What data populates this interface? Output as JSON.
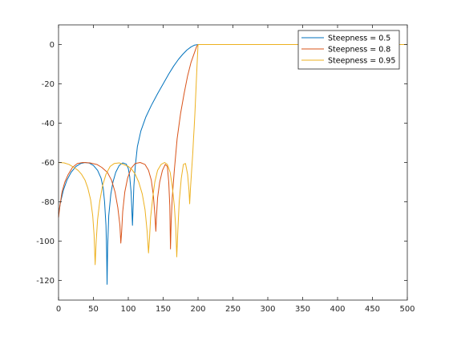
{
  "chart_data": {
    "type": "line",
    "xlim": [
      0,
      500
    ],
    "ylim": [
      -130,
      10
    ],
    "x_ticks": [
      0,
      50,
      100,
      150,
      200,
      250,
      300,
      350,
      400,
      450,
      500
    ],
    "y_ticks": [
      0,
      -20,
      -40,
      -60,
      -80,
      -100,
      -120
    ],
    "grid": false,
    "legend_position": "top-right",
    "series": [
      {
        "name": "Steepness = 0.5",
        "color": "#0072BD",
        "points": [
          [
            0,
            -86
          ],
          [
            3,
            -80
          ],
          [
            7,
            -74
          ],
          [
            12,
            -69
          ],
          [
            18,
            -65
          ],
          [
            25,
            -62
          ],
          [
            32,
            -60.5
          ],
          [
            38,
            -60
          ],
          [
            44,
            -60.3
          ],
          [
            50,
            -61.5
          ],
          [
            56,
            -64
          ],
          [
            61,
            -68
          ],
          [
            64,
            -73
          ],
          [
            66,
            -80
          ],
          [
            68,
            -92
          ],
          [
            69,
            -106
          ],
          [
            69.6,
            -122
          ],
          [
            70.4,
            -103
          ],
          [
            72,
            -87
          ],
          [
            75,
            -76
          ],
          [
            78,
            -70
          ],
          [
            82,
            -65
          ],
          [
            87,
            -61.5
          ],
          [
            92,
            -60.2
          ],
          [
            97,
            -60.8
          ],
          [
            100,
            -63
          ],
          [
            102,
            -67
          ],
          [
            104,
            -75
          ],
          [
            105,
            -83
          ],
          [
            106,
            -92
          ],
          [
            107,
            -82
          ],
          [
            108,
            -72
          ],
          [
            110,
            -62
          ],
          [
            113,
            -52
          ],
          [
            118,
            -44
          ],
          [
            125,
            -37
          ],
          [
            133,
            -31
          ],
          [
            142,
            -25
          ],
          [
            150,
            -20
          ],
          [
            158,
            -15
          ],
          [
            165,
            -11
          ],
          [
            172,
            -7.5
          ],
          [
            178,
            -5
          ],
          [
            184,
            -2.8
          ],
          [
            190,
            -1.2
          ],
          [
            195,
            -0.3
          ],
          [
            200,
            0
          ],
          [
            500,
            0
          ]
        ]
      },
      {
        "name": "Steepness = 0.8",
        "color": "#D95319",
        "points": [
          [
            0,
            -88
          ],
          [
            2,
            -82
          ],
          [
            5,
            -75
          ],
          [
            9,
            -70
          ],
          [
            14,
            -66
          ],
          [
            20,
            -62.5
          ],
          [
            27,
            -60.5
          ],
          [
            35,
            -60
          ],
          [
            45,
            -60.2
          ],
          [
            55,
            -61
          ],
          [
            62,
            -62.5
          ],
          [
            70,
            -65
          ],
          [
            76,
            -69
          ],
          [
            81,
            -75
          ],
          [
            85,
            -83
          ],
          [
            88,
            -92
          ],
          [
            89.3,
            -101
          ],
          [
            90.5,
            -95
          ],
          [
            92,
            -85
          ],
          [
            95,
            -75
          ],
          [
            99,
            -68
          ],
          [
            104,
            -63
          ],
          [
            110,
            -60.5
          ],
          [
            117,
            -60
          ],
          [
            124,
            -61
          ],
          [
            129,
            -64
          ],
          [
            133,
            -69
          ],
          [
            136,
            -77
          ],
          [
            138,
            -86
          ],
          [
            139.5,
            -95
          ],
          [
            140.5,
            -87
          ],
          [
            142,
            -78
          ],
          [
            145,
            -70
          ],
          [
            149,
            -64
          ],
          [
            153,
            -61
          ],
          [
            156,
            -62
          ],
          [
            158,
            -70
          ],
          [
            159.5,
            -82
          ],
          [
            160.5,
            -104
          ],
          [
            161.5,
            -90
          ],
          [
            163,
            -78
          ],
          [
            166,
            -64
          ],
          [
            170,
            -48
          ],
          [
            175,
            -35
          ],
          [
            180,
            -25
          ],
          [
            185,
            -16
          ],
          [
            190,
            -9
          ],
          [
            195,
            -4
          ],
          [
            198,
            -1
          ],
          [
            200,
            0
          ],
          [
            500,
            0
          ]
        ]
      },
      {
        "name": "Steepness = 0.95",
        "color": "#EDB120",
        "points": [
          [
            0,
            -60
          ],
          [
            8,
            -60.2
          ],
          [
            15,
            -61
          ],
          [
            22,
            -62.5
          ],
          [
            28,
            -64
          ],
          [
            33,
            -66
          ],
          [
            38,
            -69
          ],
          [
            42,
            -73
          ],
          [
            46,
            -79
          ],
          [
            49,
            -87
          ],
          [
            51,
            -97
          ],
          [
            52.5,
            -112
          ],
          [
            54,
            -100
          ],
          [
            56,
            -89
          ],
          [
            59,
            -80
          ],
          [
            63,
            -72
          ],
          [
            68,
            -66
          ],
          [
            74,
            -62
          ],
          [
            80,
            -60.5
          ],
          [
            87,
            -60.2
          ],
          [
            93,
            -61
          ],
          [
            100,
            -62
          ],
          [
            105,
            -63.5
          ],
          [
            110,
            -66
          ],
          [
            115,
            -70
          ],
          [
            120,
            -76
          ],
          [
            124,
            -84
          ],
          [
            127,
            -95
          ],
          [
            129,
            -106
          ],
          [
            130.5,
            -98
          ],
          [
            132,
            -88
          ],
          [
            135,
            -78
          ],
          [
            138,
            -70
          ],
          [
            142,
            -64
          ],
          [
            147,
            -61
          ],
          [
            152,
            -60
          ],
          [
            156,
            -61
          ],
          [
            160,
            -65
          ],
          [
            163,
            -72
          ],
          [
            166,
            -82
          ],
          [
            168,
            -93
          ],
          [
            169.5,
            -108
          ],
          [
            171,
            -95
          ],
          [
            173,
            -80
          ],
          [
            176,
            -68
          ],
          [
            179,
            -61
          ],
          [
            182,
            -60.5
          ],
          [
            185,
            -66
          ],
          [
            187,
            -74
          ],
          [
            188,
            -81
          ],
          [
            189,
            -74
          ],
          [
            191,
            -63
          ],
          [
            192.5,
            -55
          ],
          [
            193.5,
            -48
          ],
          [
            194.5,
            -42
          ],
          [
            195.5,
            -35
          ],
          [
            196.5,
            -27
          ],
          [
            197.5,
            -19
          ],
          [
            198.5,
            -11
          ],
          [
            199.5,
            -4
          ],
          [
            200,
            0
          ],
          [
            500,
            0
          ]
        ]
      }
    ]
  }
}
